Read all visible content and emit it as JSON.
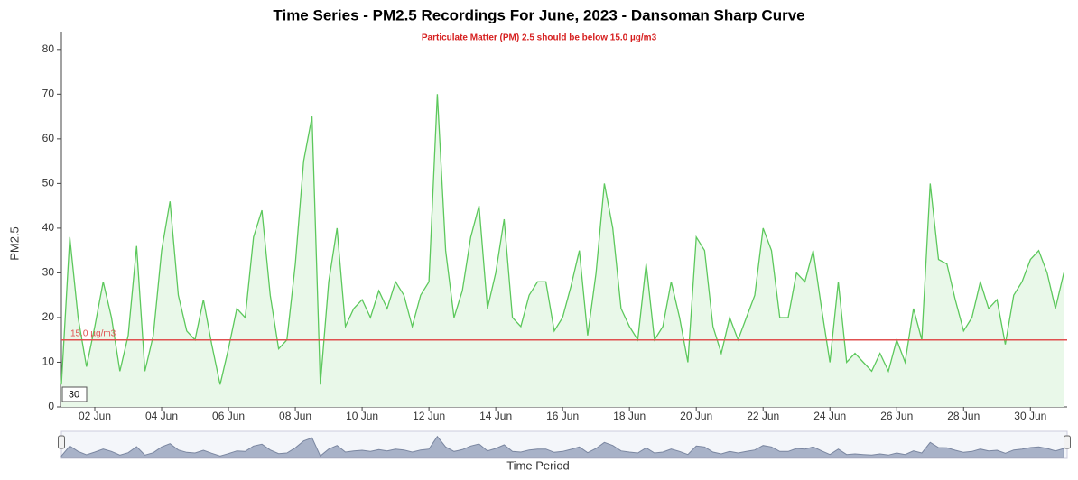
{
  "chart_data": {
    "type": "area",
    "title": "Time Series - PM2.5 Recordings For June, 2023 - Dansoman Sharp Curve",
    "subtitle": "Particulate Matter (PM) 2.5 should be below 15.0 µg/m3",
    "y_label": "PM2.5",
    "x_label": "Time Period",
    "range_input": "30",
    "color": "#5cc85c",
    "fill": "#e9f8e9",
    "threshold": {
      "value": 15,
      "label": "15.0 µg/m3",
      "color": "#e05050"
    },
    "x": [
      1,
      1.25,
      1.5,
      1.75,
      2,
      2.25,
      2.5,
      2.75,
      3,
      3.25,
      3.5,
      3.75,
      4,
      4.25,
      4.5,
      4.75,
      5,
      5.25,
      5.5,
      5.75,
      6,
      6.25,
      6.5,
      6.75,
      7,
      7.25,
      7.5,
      7.75,
      8,
      8.25,
      8.5,
      8.75,
      9,
      9.25,
      9.5,
      9.75,
      10,
      10.25,
      10.5,
      10.75,
      11,
      11.25,
      11.5,
      11.75,
      12,
      12.25,
      12.5,
      12.75,
      13,
      13.25,
      13.5,
      13.75,
      14,
      14.25,
      14.5,
      14.75,
      15,
      15.25,
      15.5,
      15.75,
      16,
      16.25,
      16.5,
      16.75,
      17,
      17.25,
      17.5,
      17.75,
      18,
      18.25,
      18.5,
      18.75,
      19,
      19.25,
      19.5,
      19.75,
      20,
      20.25,
      20.5,
      20.75,
      21,
      21.25,
      21.5,
      21.75,
      22,
      22.25,
      22.5,
      22.75,
      23,
      23.25,
      23.5,
      23.75,
      24,
      24.25,
      24.5,
      24.75,
      25,
      25.25,
      25.5,
      25.75,
      26,
      26.25,
      26.5,
      26.75,
      27,
      27.25,
      27.5,
      27.75,
      28,
      28.25,
      28.5,
      28.75,
      29,
      29.25,
      29.5,
      29.75,
      30,
      30.25,
      30.5,
      30.75,
      31
    ],
    "values": [
      5,
      38,
      20,
      9,
      18,
      28,
      20,
      8,
      16,
      36,
      8,
      16,
      35,
      46,
      25,
      17,
      15,
      24,
      14,
      5,
      13,
      22,
      20,
      38,
      44,
      25,
      13,
      15,
      32,
      55,
      65,
      5,
      28,
      40,
      18,
      22,
      24,
      20,
      26,
      22,
      28,
      25,
      18,
      25,
      28,
      70,
      35,
      20,
      26,
      38,
      45,
      22,
      30,
      42,
      20,
      18,
      25,
      28,
      28,
      17,
      20,
      27,
      35,
      16,
      30,
      50,
      40,
      22,
      18,
      15,
      32,
      15,
      18,
      28,
      20,
      10,
      38,
      35,
      18,
      12,
      20,
      15,
      20,
      25,
      40,
      35,
      20,
      20,
      30,
      28,
      35,
      22,
      10,
      28,
      10,
      12,
      10,
      8,
      12,
      8,
      15,
      10,
      22,
      15,
      50,
      33,
      32,
      24,
      17,
      20,
      28,
      22,
      24,
      14,
      25,
      28,
      33,
      35,
      30,
      22,
      30
    ],
    "xlim": [
      1,
      31.1
    ],
    "xticks": [
      {
        "value": 2,
        "label": "02 Jun"
      },
      {
        "value": 4,
        "label": "04 Jun"
      },
      {
        "value": 6,
        "label": "06 Jun"
      },
      {
        "value": 8,
        "label": "08 Jun"
      },
      {
        "value": 10,
        "label": "10 Jun"
      },
      {
        "value": 12,
        "label": "12 Jun"
      },
      {
        "value": 14,
        "label": "14 Jun"
      },
      {
        "value": 16,
        "label": "16 Jun"
      },
      {
        "value": 18,
        "label": "18 Jun"
      },
      {
        "value": 20,
        "label": "20 Jun"
      },
      {
        "value": 22,
        "label": "22 Jun"
      },
      {
        "value": 24,
        "label": "24 Jun"
      },
      {
        "value": 26,
        "label": "26 Jun"
      },
      {
        "value": 28,
        "label": "28 Jun"
      },
      {
        "value": 30,
        "label": "30 Jun"
      }
    ],
    "ylim": [
      0,
      84
    ],
    "yticks": [
      0,
      10,
      20,
      30,
      40,
      50,
      60,
      70,
      80
    ]
  }
}
